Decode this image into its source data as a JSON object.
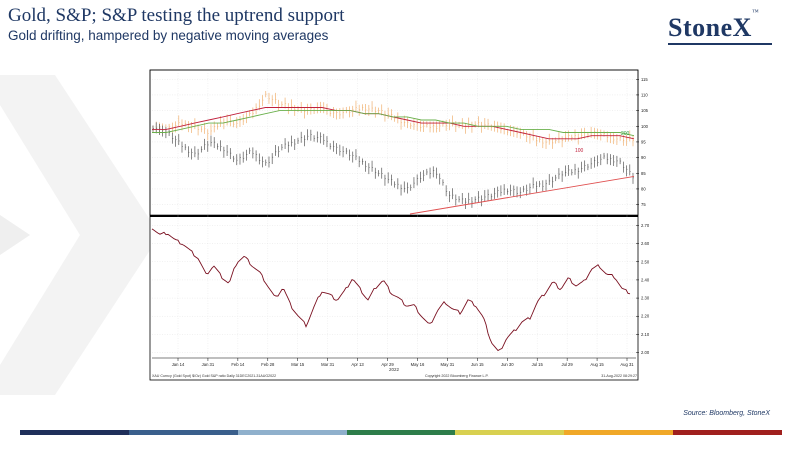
{
  "header": {
    "title": "Gold, S&P; S&P testing the uptrend support",
    "subtitle": "Gold drifting, hampered by negative moving averages"
  },
  "brand": {
    "logo_text": "StoneX",
    "trademark": "™"
  },
  "source": "Source: Bloomberg, StoneX",
  "colors": {
    "navy": "#1f3864",
    "ma_red": "#c0203c",
    "ma_green": "#6ab04c",
    "gold_bars": "#f0b070",
    "sp_bars": "#555555",
    "trendline": "#e05050",
    "ratio_line": "#7a1020",
    "footer_bands": [
      "#1f2f5a",
      "#3a5f8c",
      "#8fb0cc",
      "#2e7d4a",
      "#d8d050",
      "#f0a828",
      "#a0201e"
    ]
  },
  "chart_data": [
    {
      "type": "line",
      "panel": "top",
      "description_labels": {
        "ma_100": "100",
        "ma_200": "200"
      },
      "y_ticks": [
        "115",
        "110",
        "105",
        "100",
        "95",
        "90",
        "85",
        "80",
        "75"
      ],
      "ylim": [
        72,
        117
      ],
      "x_ticks": [
        "Jan 14",
        "Jan 31",
        "Feb 14",
        "Feb 28",
        "Mar 15",
        "Mar 31",
        "Apr 13",
        "Apr 29",
        "May 16",
        "May 31",
        "Jun 15",
        "Jun 30",
        "Jul 15",
        "Jul 29",
        "Aug 15",
        "Aug 31"
      ],
      "series": [
        {
          "name": "Gold",
          "values": [
            100,
            99,
            101,
            100,
            98,
            102,
            101,
            104,
            110,
            107,
            106,
            105,
            106,
            104,
            105,
            106,
            105,
            103,
            101,
            100,
            100,
            101,
            100,
            101,
            100,
            99,
            98,
            96,
            95,
            96,
            97,
            98,
            97,
            96,
            96
          ]
        },
        {
          "name": "S&P",
          "values": [
            100,
            98,
            94,
            91,
            95,
            93,
            89,
            92,
            88,
            93,
            95,
            97,
            96,
            93,
            91,
            88,
            85,
            82,
            80,
            84,
            86,
            78,
            76,
            77,
            78,
            80,
            79,
            81,
            82,
            85,
            86,
            88,
            90,
            89,
            84
          ]
        },
        {
          "name": "100",
          "values": [
            99,
            99,
            100,
            101,
            102,
            103,
            104,
            105,
            106,
            106,
            106,
            106,
            106,
            105,
            105,
            104,
            104,
            103,
            102,
            101,
            101,
            101,
            100,
            100,
            100,
            99,
            98,
            97,
            96,
            96,
            96,
            97,
            97,
            97,
            96
          ]
        },
        {
          "name": "200",
          "values": [
            98,
            98,
            99,
            100,
            101,
            101,
            102,
            103,
            104,
            105,
            105,
            105,
            105,
            105,
            105,
            104,
            104,
            103,
            103,
            102,
            102,
            101,
            101,
            100,
            100,
            100,
            99,
            99,
            99,
            98,
            98,
            98,
            98,
            98,
            97
          ]
        },
        {
          "name": "Trend",
          "values": [
            72,
            84
          ]
        }
      ]
    },
    {
      "type": "line",
      "panel": "bottom",
      "y_ticks": [
        "2.70",
        "2.60",
        "2.50",
        "2.40",
        "2.30",
        "2.20",
        "2.10",
        "2.00"
      ],
      "ylim": [
        1.97,
        2.73
      ],
      "series": [
        {
          "name": "Gold/S&P ratio",
          "values": [
            2.69,
            2.65,
            2.66,
            2.62,
            2.6,
            2.56,
            2.52,
            2.43,
            2.48,
            2.42,
            2.38,
            2.5,
            2.53,
            2.48,
            2.44,
            2.37,
            2.3,
            2.36,
            2.26,
            2.2,
            2.15,
            2.25,
            2.34,
            2.32,
            2.29,
            2.34,
            2.41,
            2.35,
            2.29,
            2.36,
            2.4,
            2.33,
            2.3,
            2.26,
            2.26,
            2.2,
            2.15,
            2.23,
            2.28,
            2.24,
            2.22,
            2.29,
            2.26,
            2.19,
            2.06,
            2.0,
            2.08,
            2.12,
            2.17,
            2.19,
            2.28,
            2.33,
            2.39,
            2.35,
            2.41,
            2.37,
            2.39,
            2.46,
            2.48,
            2.43,
            2.42,
            2.35,
            2.33
          ]
        }
      ]
    }
  ],
  "footnote": {
    "left": "XAU Curncy (Gold Spot)  $/Oz)  Gold S&P ratio  Daily 31DEC2021-31AUG2022",
    "middle": "Copyright 2022 Bloomberg Finance L.P.",
    "right": "31-Aug-2022 08:29:27",
    "year": "2022"
  }
}
